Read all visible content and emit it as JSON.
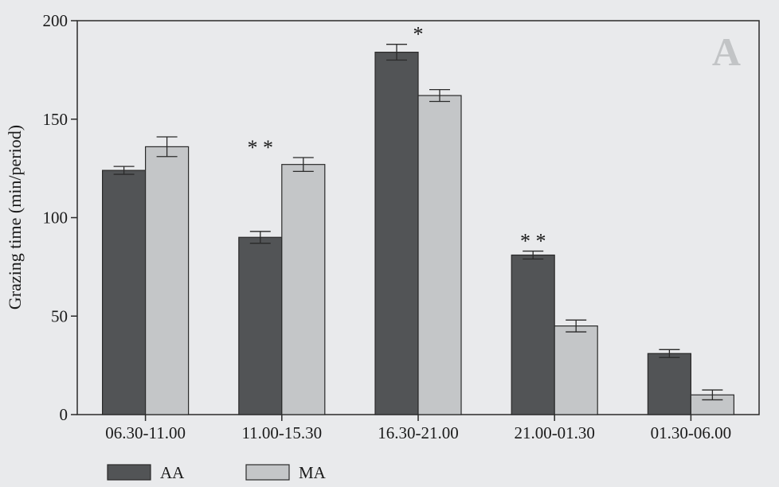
{
  "chart_data": {
    "type": "bar",
    "panel_label": "A",
    "ylabel": "Grazing time (min/period)",
    "xlabel": "",
    "ylim": [
      0,
      200
    ],
    "yticks": [
      0,
      50,
      100,
      150,
      200
    ],
    "categories": [
      "06.30-11.00",
      "11.00-15.30",
      "16.30-21.00",
      "21.00-01.30",
      "01.30-06.00"
    ],
    "series": [
      {
        "name": "AA",
        "color": "#525456",
        "values": [
          124,
          90,
          184,
          81,
          31
        ],
        "errors": [
          2,
          3,
          4,
          2,
          2
        ]
      },
      {
        "name": "MA",
        "color": "#c4c6c8",
        "values": [
          136,
          127,
          162,
          45,
          10
        ],
        "errors": [
          5,
          3.5,
          3,
          3,
          2.5
        ]
      }
    ],
    "significance": [
      "",
      "* *",
      "*",
      "* *",
      ""
    ],
    "legend_position": "bottom-left",
    "grid": false
  }
}
